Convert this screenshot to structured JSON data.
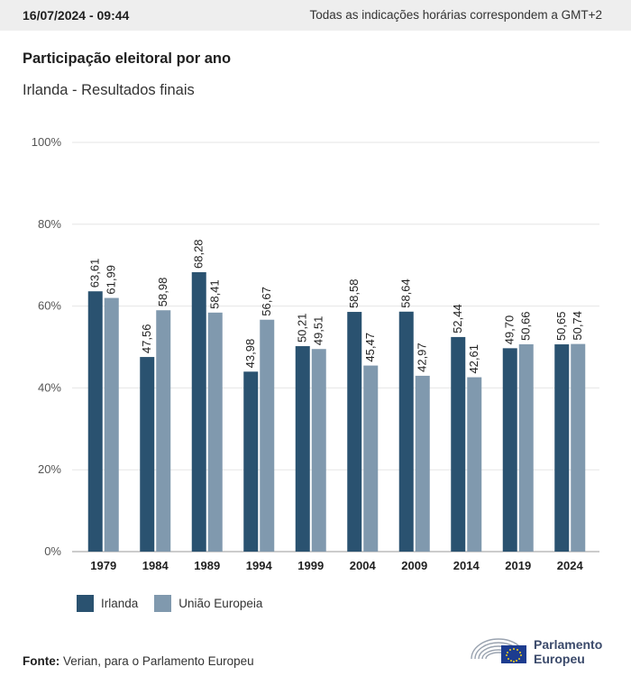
{
  "header": {
    "timestamp": "16/07/2024 - 09:44",
    "timezone_note": "Todas as indicações horárias correspondem a GMT+2"
  },
  "title": "Participação eleitoral por ano",
  "subtitle": "Irlanda - Resultados finais",
  "chart_data": {
    "type": "bar",
    "categories": [
      "1979",
      "1984",
      "1989",
      "1994",
      "1999",
      "2004",
      "2009",
      "2014",
      "2019",
      "2024"
    ],
    "series": [
      {
        "name": "Irlanda",
        "color": "#2a5270",
        "values": [
          63.61,
          47.56,
          68.28,
          43.98,
          50.21,
          58.58,
          58.64,
          52.44,
          49.7,
          50.65
        ],
        "labels": [
          "63,61",
          "47,56",
          "68,28",
          "43,98",
          "50,21",
          "58,58",
          "58,64",
          "52,44",
          "49,70",
          "50,65"
        ]
      },
      {
        "name": "União Europeia",
        "color": "#8099ae",
        "values": [
          61.99,
          58.98,
          58.41,
          56.67,
          49.51,
          45.47,
          42.97,
          42.61,
          50.66,
          50.74
        ],
        "labels": [
          "61,99",
          "58,98",
          "58,41",
          "56,67",
          "49,51",
          "45,47",
          "42,97",
          "42,61",
          "50,66",
          "50,74"
        ]
      }
    ],
    "ylim": [
      0,
      100
    ],
    "yticks": [
      "0%",
      "20%",
      "40%",
      "60%",
      "80%",
      "100%"
    ],
    "grid": true,
    "legend": "bottom-left"
  },
  "legend": {
    "items": [
      "Irlanda",
      "União Europeia"
    ]
  },
  "source": {
    "label": "Fonte:",
    "text": "Verian, para o Parlamento Europeu"
  },
  "logo": {
    "line1": "Parlamento",
    "line2": "Europeu"
  }
}
